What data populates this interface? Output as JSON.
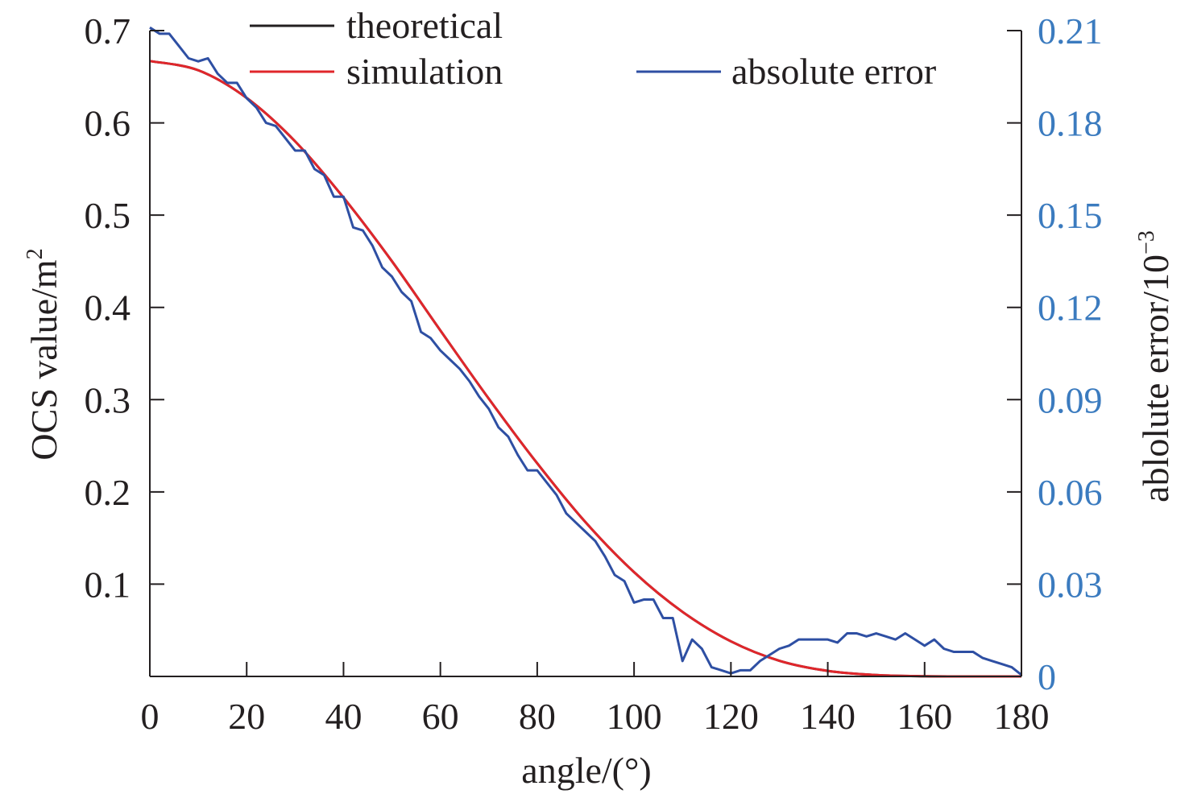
{
  "colors": {
    "axis": "#231f20",
    "theoretical": "#231f20",
    "simulation": "#e0262b",
    "absolute_error": "#2e4fa3",
    "right_axis_text": "#3b7bbf"
  },
  "chart_data": {
    "type": "line",
    "title": "",
    "xlabel": "angle/(°)",
    "ylabel": "OCS value/m",
    "ylabel_superscript": "2",
    "y2label": "ablolute error/10",
    "y2label_superscript": "−3",
    "xlim": [
      0,
      180
    ],
    "ylim": [
      0,
      0.7
    ],
    "y2lim": [
      0,
      0.21
    ],
    "x_ticks": [
      0,
      20,
      40,
      60,
      80,
      100,
      120,
      140,
      160,
      180
    ],
    "x_tick_labels": [
      "0",
      "20",
      "40",
      "60",
      "80",
      "100",
      "120",
      "140",
      "160",
      "180"
    ],
    "y_ticks": [
      0.1,
      0.2,
      0.3,
      0.4,
      0.5,
      0.6,
      0.7
    ],
    "y_tick_labels": [
      "0.1",
      "0.2",
      "0.3",
      "0.4",
      "0.5",
      "0.6",
      "0.7"
    ],
    "y2_ticks": [
      0,
      0.03,
      0.06,
      0.09,
      0.12,
      0.15,
      0.18,
      0.21
    ],
    "y2_tick_labels": [
      "0",
      "0.03",
      "0.06",
      "0.09",
      "0.12",
      "0.15",
      "0.18",
      "0.21"
    ],
    "legend_position": "top",
    "series": [
      {
        "name": "theoretical",
        "axis": "left",
        "color": "#231f20",
        "x": [
          0,
          10,
          20,
          30,
          40,
          50,
          60,
          70,
          80,
          90,
          100,
          110,
          120,
          130,
          140,
          150,
          160,
          170,
          180
        ],
        "y": [
          0.667,
          0.657,
          0.627,
          0.58,
          0.519,
          0.45,
          0.375,
          0.301,
          0.231,
          0.167,
          0.113,
          0.07,
          0.038,
          0.017,
          0.006,
          0.0015,
          0.0002,
          1e-05,
          0
        ]
      },
      {
        "name": "simulation",
        "axis": "left",
        "color": "#e0262b",
        "x": [
          0,
          10,
          20,
          30,
          40,
          50,
          60,
          70,
          80,
          90,
          100,
          110,
          120,
          130,
          140,
          150,
          160,
          170,
          180
        ],
        "y": [
          0.667,
          0.657,
          0.627,
          0.58,
          0.519,
          0.45,
          0.375,
          0.301,
          0.231,
          0.167,
          0.113,
          0.07,
          0.038,
          0.017,
          0.006,
          0.0015,
          0.0002,
          1e-05,
          0
        ]
      },
      {
        "name": "absolute error",
        "axis": "right",
        "color": "#2e4fa3",
        "x": [
          0,
          2,
          4,
          6,
          8,
          10,
          12,
          14,
          16,
          18,
          20,
          22,
          24,
          26,
          28,
          30,
          32,
          34,
          36,
          38,
          40,
          42,
          44,
          46,
          48,
          50,
          52,
          54,
          56,
          58,
          60,
          62,
          64,
          66,
          68,
          70,
          72,
          74,
          76,
          78,
          80,
          82,
          84,
          86,
          88,
          90,
          92,
          94,
          96,
          98,
          100,
          102,
          104,
          106,
          108,
          110,
          112,
          114,
          116,
          118,
          120,
          122,
          124,
          126,
          128,
          130,
          132,
          134,
          136,
          138,
          140,
          142,
          144,
          146,
          148,
          150,
          152,
          154,
          156,
          158,
          160,
          162,
          164,
          166,
          168,
          170,
          172,
          174,
          176,
          178,
          180
        ],
        "y": [
          0.211,
          0.209,
          0.209,
          0.205,
          0.201,
          0.2,
          0.201,
          0.196,
          0.193,
          0.193,
          0.188,
          0.185,
          0.18,
          0.179,
          0.175,
          0.171,
          0.171,
          0.165,
          0.163,
          0.156,
          0.156,
          0.146,
          0.145,
          0.14,
          0.133,
          0.13,
          0.125,
          0.122,
          0.112,
          0.11,
          0.106,
          0.103,
          0.1,
          0.096,
          0.091,
          0.087,
          0.081,
          0.078,
          0.072,
          0.067,
          0.067,
          0.063,
          0.059,
          0.053,
          0.05,
          0.047,
          0.044,
          0.039,
          0.033,
          0.031,
          0.024,
          0.025,
          0.025,
          0.019,
          0.019,
          0.005,
          0.012,
          0.009,
          0.003,
          0.002,
          0.001,
          0.002,
          0.002,
          0.005,
          0.007,
          0.009,
          0.01,
          0.012,
          0.012,
          0.012,
          0.012,
          0.011,
          0.014,
          0.014,
          0.013,
          0.014,
          0.013,
          0.012,
          0.014,
          0.012,
          0.01,
          0.012,
          0.009,
          0.008,
          0.008,
          0.008,
          0.006,
          0.005,
          0.004,
          0.003,
          0.0005
        ]
      }
    ]
  }
}
